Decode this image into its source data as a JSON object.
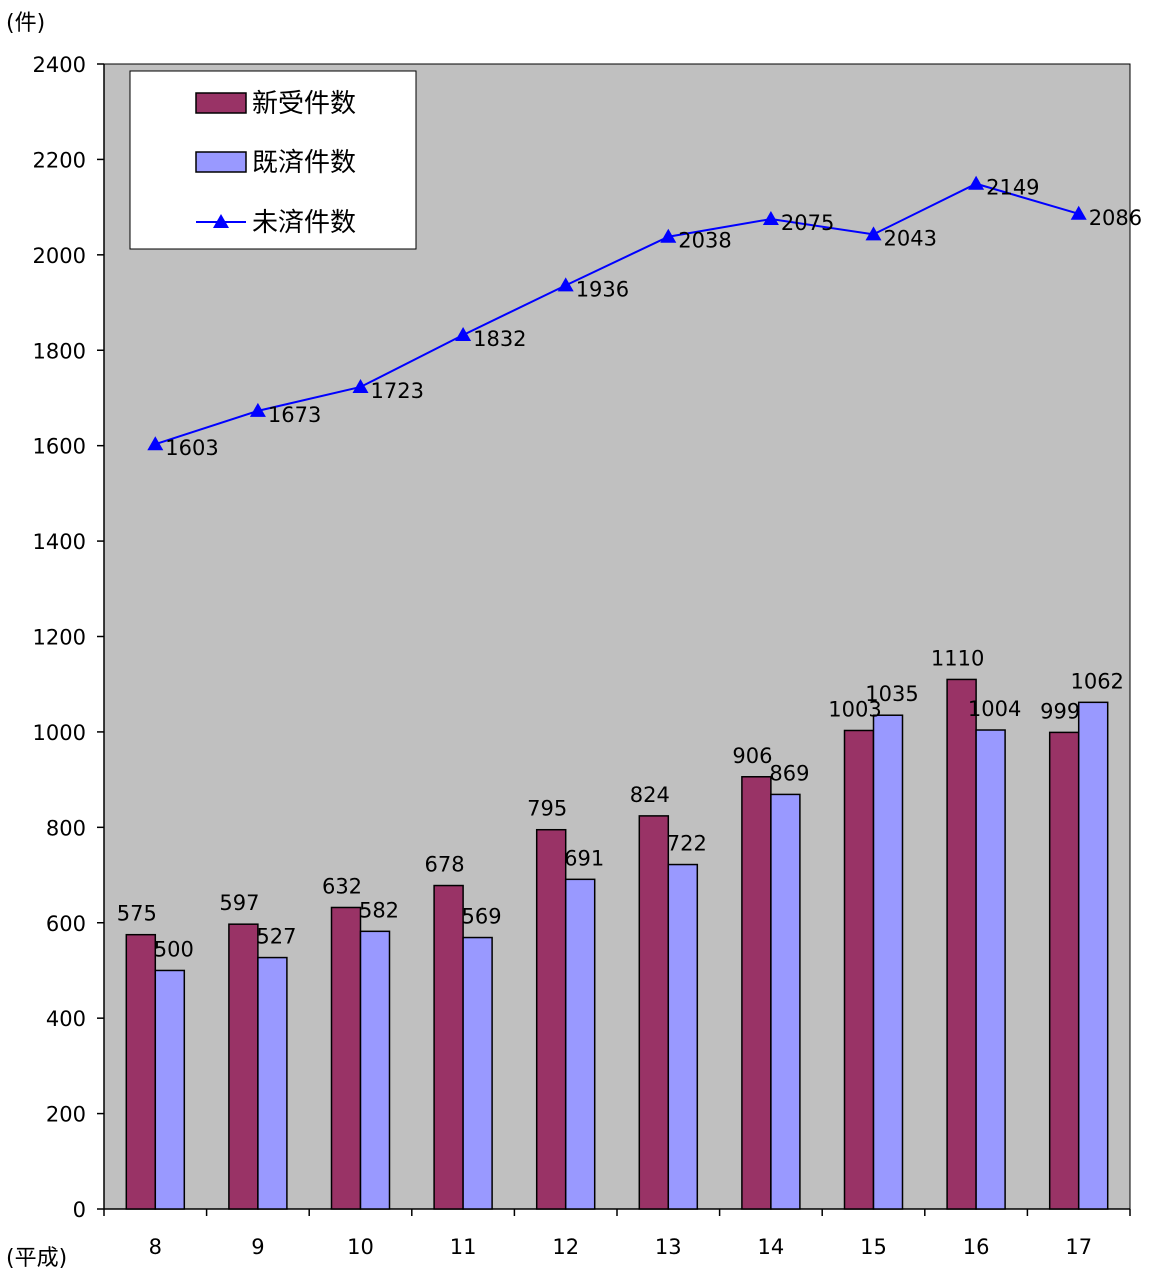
{
  "chart_data": {
    "type": "bar",
    "title": "",
    "ylabel": "(件)",
    "xlabel": "(平成)",
    "ylim": [
      0,
      2400
    ],
    "yticks": [
      0,
      200,
      400,
      600,
      800,
      1000,
      1200,
      1400,
      1600,
      1800,
      2000,
      2200,
      2400
    ],
    "categories": [
      "8",
      "9",
      "10",
      "11",
      "12",
      "13",
      "14",
      "15",
      "16",
      "17"
    ],
    "series": [
      {
        "name": "新受件数",
        "type": "bar",
        "color": "#993366",
        "values": [
          575,
          597,
          632,
          678,
          795,
          824,
          906,
          1003,
          1110,
          999
        ]
      },
      {
        "name": "既済件数",
        "type": "bar",
        "color": "#9999FF",
        "values": [
          500,
          527,
          582,
          569,
          691,
          722,
          869,
          1035,
          1004,
          1062
        ]
      },
      {
        "name": "未済件数",
        "type": "line",
        "color": "#0000FF",
        "marker": "triangle",
        "values": [
          1603,
          1673,
          1723,
          1832,
          1936,
          2038,
          2075,
          2043,
          2149,
          2086
        ]
      }
    ],
    "plot_background": "#C0C0C0",
    "grid": false,
    "legend": "top-left"
  }
}
